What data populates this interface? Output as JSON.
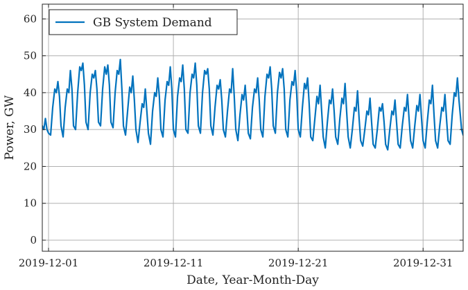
{
  "chart_data": {
    "type": "line",
    "xlabel": "Date, Year-Month-Day",
    "ylabel": "Power, GW",
    "xlim": [
      "2019-11-30T12:00",
      "2020-01-03T05:00"
    ],
    "ylim": [
      -3,
      64
    ],
    "x_ticks": [
      "2019-12-01",
      "2019-12-11",
      "2019-12-21",
      "2019-12-31"
    ],
    "y_ticks": [
      0,
      10,
      20,
      30,
      40,
      50,
      60
    ],
    "grid": true,
    "legend_position": "upper-left",
    "series": [
      {
        "name": "GB System Demand",
        "color": "#0072bd",
        "points": [
          [
            "2019-11-30T12:00",
            31
          ],
          [
            "2019-11-30T15:00",
            30
          ],
          [
            "2019-11-30T18:00",
            33
          ],
          [
            "2019-11-30T21:00",
            30
          ],
          [
            "2019-12-01T00:00",
            29
          ],
          [
            "2019-12-01T04:00",
            28.5
          ],
          [
            "2019-12-01T08:00",
            36
          ],
          [
            "2019-12-01T12:00",
            41
          ],
          [
            "2019-12-01T15:00",
            40
          ],
          [
            "2019-12-01T18:00",
            43
          ],
          [
            "2019-12-01T21:00",
            39
          ],
          [
            "2019-12-02T00:00",
            31
          ],
          [
            "2019-12-02T04:00",
            28
          ],
          [
            "2019-12-02T08:00",
            36
          ],
          [
            "2019-12-02T12:00",
            41
          ],
          [
            "2019-12-02T15:00",
            40
          ],
          [
            "2019-12-02T18:00",
            46
          ],
          [
            "2019-12-02T21:00",
            41
          ],
          [
            "2019-12-03T00:00",
            31
          ],
          [
            "2019-12-03T04:00",
            30
          ],
          [
            "2019-12-03T08:00",
            40
          ],
          [
            "2019-12-03T12:00",
            47
          ],
          [
            "2019-12-03T15:00",
            46
          ],
          [
            "2019-12-03T18:00",
            48
          ],
          [
            "2019-12-03T21:00",
            42
          ],
          [
            "2019-12-04T00:00",
            32
          ],
          [
            "2019-12-04T04:00",
            30
          ],
          [
            "2019-12-04T08:00",
            40
          ],
          [
            "2019-12-04T12:00",
            45
          ],
          [
            "2019-12-04T15:00",
            44
          ],
          [
            "2019-12-04T18:00",
            46
          ],
          [
            "2019-12-04T21:00",
            41
          ],
          [
            "2019-12-05T00:00",
            32
          ],
          [
            "2019-12-05T04:00",
            31
          ],
          [
            "2019-12-05T08:00",
            41
          ],
          [
            "2019-12-05T12:00",
            47
          ],
          [
            "2019-12-05T15:00",
            45
          ],
          [
            "2019-12-05T18:00",
            47.5
          ],
          [
            "2019-12-05T21:00",
            42
          ],
          [
            "2019-12-06T00:00",
            32
          ],
          [
            "2019-12-06T04:00",
            30.5
          ],
          [
            "2019-12-06T08:00",
            40
          ],
          [
            "2019-12-06T12:00",
            46
          ],
          [
            "2019-12-06T15:00",
            45
          ],
          [
            "2019-12-06T18:00",
            49
          ],
          [
            "2019-12-06T21:00",
            41
          ],
          [
            "2019-12-07T00:00",
            31
          ],
          [
            "2019-12-07T04:00",
            28.5
          ],
          [
            "2019-12-07T08:00",
            35
          ],
          [
            "2019-12-07T12:00",
            41.5
          ],
          [
            "2019-12-07T15:00",
            40
          ],
          [
            "2019-12-07T18:00",
            44.5
          ],
          [
            "2019-12-07T21:00",
            38
          ],
          [
            "2019-12-08T00:00",
            30
          ],
          [
            "2019-12-08T04:00",
            26.5
          ],
          [
            "2019-12-08T08:00",
            32
          ],
          [
            "2019-12-08T12:00",
            37
          ],
          [
            "2019-12-08T15:00",
            36
          ],
          [
            "2019-12-08T18:00",
            41
          ],
          [
            "2019-12-08T21:00",
            35
          ],
          [
            "2019-12-09T00:00",
            29
          ],
          [
            "2019-12-09T04:00",
            26
          ],
          [
            "2019-12-09T08:00",
            35
          ],
          [
            "2019-12-09T12:00",
            40
          ],
          [
            "2019-12-09T15:00",
            39
          ],
          [
            "2019-12-09T18:00",
            44
          ],
          [
            "2019-12-09T21:00",
            39
          ],
          [
            "2019-12-10T00:00",
            30
          ],
          [
            "2019-12-10T04:00",
            28
          ],
          [
            "2019-12-10T08:00",
            38
          ],
          [
            "2019-12-10T12:00",
            43
          ],
          [
            "2019-12-10T15:00",
            42
          ],
          [
            "2019-12-10T18:00",
            47
          ],
          [
            "2019-12-10T21:00",
            41
          ],
          [
            "2019-12-11T00:00",
            30
          ],
          [
            "2019-12-11T04:00",
            28
          ],
          [
            "2019-12-11T08:00",
            39
          ],
          [
            "2019-12-11T12:00",
            44
          ],
          [
            "2019-12-11T15:00",
            43
          ],
          [
            "2019-12-11T18:00",
            47.5
          ],
          [
            "2019-12-11T21:00",
            41
          ],
          [
            "2019-12-12T00:00",
            30
          ],
          [
            "2019-12-12T04:00",
            29
          ],
          [
            "2019-12-12T08:00",
            40
          ],
          [
            "2019-12-12T12:00",
            45
          ],
          [
            "2019-12-12T15:00",
            44
          ],
          [
            "2019-12-12T18:00",
            48
          ],
          [
            "2019-12-12T21:00",
            42
          ],
          [
            "2019-12-13T00:00",
            31
          ],
          [
            "2019-12-13T04:00",
            29
          ],
          [
            "2019-12-13T08:00",
            40
          ],
          [
            "2019-12-13T12:00",
            46
          ],
          [
            "2019-12-13T15:00",
            45
          ],
          [
            "2019-12-13T18:00",
            46.5
          ],
          [
            "2019-12-13T21:00",
            41
          ],
          [
            "2019-12-14T00:00",
            31
          ],
          [
            "2019-12-14T04:00",
            28.5
          ],
          [
            "2019-12-14T08:00",
            36
          ],
          [
            "2019-12-14T12:00",
            42
          ],
          [
            "2019-12-14T15:00",
            41
          ],
          [
            "2019-12-14T18:00",
            43.5
          ],
          [
            "2019-12-14T21:00",
            38
          ],
          [
            "2019-12-15T00:00",
            30
          ],
          [
            "2019-12-15T04:00",
            28
          ],
          [
            "2019-12-15T08:00",
            35
          ],
          [
            "2019-12-15T12:00",
            41
          ],
          [
            "2019-12-15T15:00",
            40
          ],
          [
            "2019-12-15T18:00",
            46.5
          ],
          [
            "2019-12-15T21:00",
            39
          ],
          [
            "2019-12-16T00:00",
            30
          ],
          [
            "2019-12-16T04:00",
            27
          ],
          [
            "2019-12-16T08:00",
            34
          ],
          [
            "2019-12-16T12:00",
            39.5
          ],
          [
            "2019-12-16T15:00",
            38
          ],
          [
            "2019-12-16T18:00",
            42
          ],
          [
            "2019-12-16T21:00",
            36
          ],
          [
            "2019-12-17T00:00",
            29
          ],
          [
            "2019-12-17T04:00",
            27.5
          ],
          [
            "2019-12-17T08:00",
            36
          ],
          [
            "2019-12-17T12:00",
            41
          ],
          [
            "2019-12-17T15:00",
            40
          ],
          [
            "2019-12-17T18:00",
            44
          ],
          [
            "2019-12-17T21:00",
            38
          ],
          [
            "2019-12-18T00:00",
            30
          ],
          [
            "2019-12-18T04:00",
            28
          ],
          [
            "2019-12-18T08:00",
            39
          ],
          [
            "2019-12-18T12:00",
            45
          ],
          [
            "2019-12-18T15:00",
            44
          ],
          [
            "2019-12-18T18:00",
            47
          ],
          [
            "2019-12-18T21:00",
            41
          ],
          [
            "2019-12-19T00:00",
            31
          ],
          [
            "2019-12-19T04:00",
            29
          ],
          [
            "2019-12-19T08:00",
            40
          ],
          [
            "2019-12-19T12:00",
            45.5
          ],
          [
            "2019-12-19T15:00",
            44
          ],
          [
            "2019-12-19T18:00",
            46.5
          ],
          [
            "2019-12-19T21:00",
            41
          ],
          [
            "2019-12-20T00:00",
            30
          ],
          [
            "2019-12-20T04:00",
            28
          ],
          [
            "2019-12-20T08:00",
            38
          ],
          [
            "2019-12-20T12:00",
            43
          ],
          [
            "2019-12-20T15:00",
            42
          ],
          [
            "2019-12-20T18:00",
            46
          ],
          [
            "2019-12-20T21:00",
            40
          ],
          [
            "2019-12-21T00:00",
            30
          ],
          [
            "2019-12-21T04:00",
            28
          ],
          [
            "2019-12-21T08:00",
            36
          ],
          [
            "2019-12-21T12:00",
            42.5
          ],
          [
            "2019-12-21T15:00",
            41
          ],
          [
            "2019-12-21T18:00",
            44
          ],
          [
            "2019-12-21T21:00",
            37
          ],
          [
            "2019-12-22T00:00",
            28
          ],
          [
            "2019-12-22T04:00",
            27
          ],
          [
            "2019-12-22T08:00",
            33
          ],
          [
            "2019-12-22T12:00",
            39
          ],
          [
            "2019-12-22T15:00",
            37
          ],
          [
            "2019-12-22T18:00",
            42
          ],
          [
            "2019-12-22T21:00",
            35
          ],
          [
            "2019-12-23T00:00",
            28
          ],
          [
            "2019-12-23T04:00",
            25
          ],
          [
            "2019-12-23T08:00",
            32
          ],
          [
            "2019-12-23T12:00",
            38
          ],
          [
            "2019-12-23T15:00",
            37
          ],
          [
            "2019-12-23T18:00",
            41
          ],
          [
            "2019-12-23T21:00",
            35
          ],
          [
            "2019-12-24T00:00",
            28
          ],
          [
            "2019-12-24T04:00",
            26
          ],
          [
            "2019-12-24T08:00",
            33
          ],
          [
            "2019-12-24T12:00",
            38.5
          ],
          [
            "2019-12-24T15:00",
            37
          ],
          [
            "2019-12-24T18:00",
            42.5
          ],
          [
            "2019-12-24T21:00",
            35
          ],
          [
            "2019-12-25T00:00",
            28
          ],
          [
            "2019-12-25T04:00",
            25
          ],
          [
            "2019-12-25T08:00",
            30
          ],
          [
            "2019-12-25T12:00",
            36
          ],
          [
            "2019-12-25T15:00",
            35
          ],
          [
            "2019-12-25T18:00",
            40.5
          ],
          [
            "2019-12-25T21:00",
            33
          ],
          [
            "2019-12-26T00:00",
            27
          ],
          [
            "2019-12-26T04:00",
            25.5
          ],
          [
            "2019-12-26T08:00",
            30
          ],
          [
            "2019-12-26T12:00",
            35
          ],
          [
            "2019-12-26T15:00",
            34
          ],
          [
            "2019-12-26T18:00",
            38.5
          ],
          [
            "2019-12-26T21:00",
            32
          ],
          [
            "2019-12-27T00:00",
            26
          ],
          [
            "2019-12-27T04:00",
            25
          ],
          [
            "2019-12-27T08:00",
            30
          ],
          [
            "2019-12-27T12:00",
            36
          ],
          [
            "2019-12-27T15:00",
            35
          ],
          [
            "2019-12-27T18:00",
            37
          ],
          [
            "2019-12-27T21:00",
            32
          ],
          [
            "2019-12-28T00:00",
            26
          ],
          [
            "2019-12-28T04:00",
            24.5
          ],
          [
            "2019-12-28T08:00",
            30
          ],
          [
            "2019-12-28T12:00",
            35
          ],
          [
            "2019-12-28T15:00",
            34
          ],
          [
            "2019-12-28T18:00",
            38
          ],
          [
            "2019-12-28T21:00",
            32
          ],
          [
            "2019-12-29T00:00",
            26
          ],
          [
            "2019-12-29T04:00",
            25
          ],
          [
            "2019-12-29T08:00",
            31
          ],
          [
            "2019-12-29T12:00",
            36
          ],
          [
            "2019-12-29T15:00",
            35
          ],
          [
            "2019-12-29T18:00",
            39.5
          ],
          [
            "2019-12-29T21:00",
            33
          ],
          [
            "2019-12-30T00:00",
            27
          ],
          [
            "2019-12-30T04:00",
            25
          ],
          [
            "2019-12-30T08:00",
            31
          ],
          [
            "2019-12-30T12:00",
            36.5
          ],
          [
            "2019-12-30T15:00",
            35
          ],
          [
            "2019-12-30T18:00",
            39.5
          ],
          [
            "2019-12-30T21:00",
            33
          ],
          [
            "2019-12-31T00:00",
            27
          ],
          [
            "2019-12-31T04:00",
            25
          ],
          [
            "2019-12-31T08:00",
            32
          ],
          [
            "2019-12-31T12:00",
            38
          ],
          [
            "2019-12-31T15:00",
            37
          ],
          [
            "2019-12-31T18:00",
            42
          ],
          [
            "2019-12-31T21:00",
            34
          ],
          [
            "2020-01-01T00:00",
            27
          ],
          [
            "2020-01-01T04:00",
            25
          ],
          [
            "2020-01-01T08:00",
            31
          ],
          [
            "2020-01-01T12:00",
            36
          ],
          [
            "2020-01-01T15:00",
            35
          ],
          [
            "2020-01-01T18:00",
            39.5
          ],
          [
            "2020-01-01T21:00",
            33
          ],
          [
            "2020-01-02T00:00",
            27
          ],
          [
            "2020-01-02T04:00",
            26
          ],
          [
            "2020-01-02T08:00",
            34
          ],
          [
            "2020-01-02T12:00",
            40
          ],
          [
            "2020-01-02T15:00",
            39
          ],
          [
            "2020-01-02T18:00",
            44
          ],
          [
            "2020-01-02T21:00",
            38
          ],
          [
            "2020-01-03T02:00",
            30
          ],
          [
            "2020-01-03T05:00",
            28.5
          ]
        ]
      }
    ]
  }
}
